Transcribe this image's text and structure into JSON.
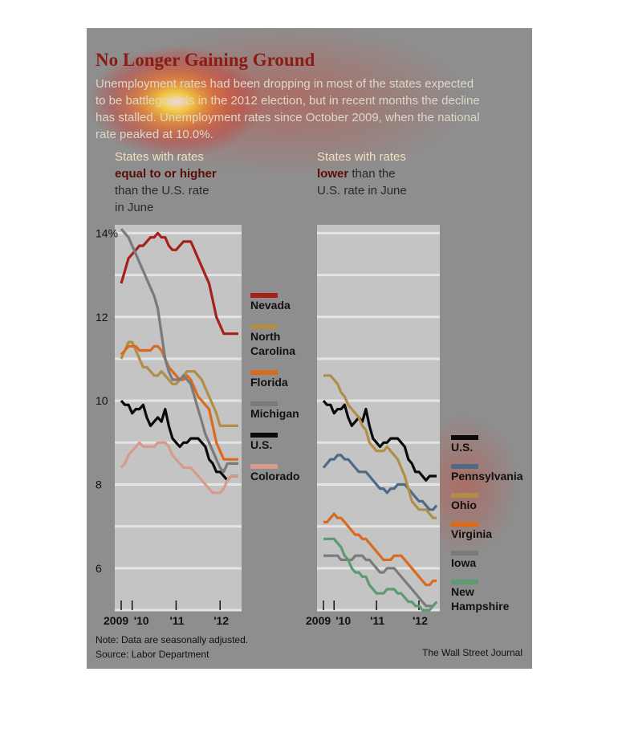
{
  "title": "No Longer Gaining Ground",
  "subtitle": "Unemployment rates had been dropping in most of the states expected to be battlegounds in the 2012 election, but in recent months the decline has stalled. Unemployment rates since October 2009, when the national rate peaked at 10.0%.",
  "left_panel": {
    "heading_line1": "States with rates",
    "heading_bold": "equal to or higher",
    "heading_line3": "than the U.S. rate",
    "heading_line4": "in June"
  },
  "right_panel": {
    "heading_line1": "States with rates",
    "heading_bold": "lower",
    "heading_rest": " than the",
    "heading_line3": "U.S. rate in June"
  },
  "note": "Note: Data are seasonally adjusted.",
  "source": "Source: Labor Department",
  "credit": "The Wall Street Journal",
  "chart_data": [
    {
      "type": "line",
      "ylim": [
        5,
        14.2
      ],
      "y_ticks": [
        6,
        8,
        10,
        12,
        14
      ],
      "y_tick_labels": [
        "6",
        "8",
        "10",
        "12",
        "14%"
      ],
      "x_tick_labels": [
        "2009",
        "'10",
        "'11",
        "'12"
      ],
      "grid": true,
      "x": [
        0,
        1,
        2,
        3,
        4,
        5,
        6,
        7,
        8,
        9,
        10,
        11,
        12,
        13,
        14,
        15,
        16,
        17,
        18,
        19,
        20,
        21,
        22,
        23,
        24,
        25,
        26,
        27,
        28,
        29,
        30,
        31,
        32
      ],
      "series": [
        {
          "name": "Nevada",
          "color": "#a8201a",
          "values": [
            12.8,
            13.1,
            13.4,
            13.5,
            13.6,
            13.7,
            13.7,
            13.8,
            13.9,
            13.9,
            14.0,
            13.9,
            13.9,
            13.7,
            13.6,
            13.6,
            13.7,
            13.8,
            13.8,
            13.8,
            13.6,
            13.4,
            13.2,
            13.0,
            12.8,
            12.4,
            12.0,
            11.8,
            11.6,
            11.6,
            11.6,
            11.6,
            11.6
          ]
        },
        {
          "name": "North Carolina",
          "color": "#b08e48",
          "values": [
            11.0,
            11.2,
            11.4,
            11.4,
            11.2,
            11.0,
            10.8,
            10.8,
            10.7,
            10.6,
            10.6,
            10.7,
            10.6,
            10.5,
            10.4,
            10.4,
            10.5,
            10.6,
            10.7,
            10.7,
            10.7,
            10.6,
            10.5,
            10.3,
            10.1,
            9.9,
            9.7,
            9.4,
            9.4,
            9.4,
            9.4,
            9.4,
            9.4
          ]
        },
        {
          "name": "Florida",
          "color": "#d96a1e",
          "values": [
            11.1,
            11.2,
            11.3,
            11.3,
            11.3,
            11.2,
            11.2,
            11.2,
            11.2,
            11.3,
            11.3,
            11.2,
            11.0,
            10.8,
            10.7,
            10.6,
            10.5,
            10.5,
            10.6,
            10.5,
            10.3,
            10.1,
            10.0,
            9.9,
            9.8,
            9.4,
            9.0,
            8.8,
            8.6,
            8.6,
            8.6,
            8.6,
            8.6
          ]
        },
        {
          "name": "Michigan",
          "color": "#7a7a7a",
          "values": [
            14.1,
            14.0,
            13.9,
            13.7,
            13.5,
            13.3,
            13.1,
            12.9,
            12.7,
            12.5,
            12.2,
            11.6,
            11.0,
            10.7,
            10.5,
            10.5,
            10.5,
            10.6,
            10.5,
            10.4,
            10.1,
            9.8,
            9.5,
            9.2,
            9.0,
            8.8,
            8.6,
            8.4,
            8.3,
            8.5,
            8.5,
            8.5,
            8.5
          ]
        },
        {
          "name": "U.S.",
          "color": "#0a0a0a",
          "values": [
            10.0,
            9.9,
            9.9,
            9.7,
            9.8,
            9.8,
            9.9,
            9.6,
            9.4,
            9.5,
            9.6,
            9.5,
            9.8,
            9.4,
            9.1,
            9.0,
            8.9,
            9.0,
            9.0,
            9.1,
            9.1,
            9.1,
            9.0,
            8.9,
            8.6,
            8.5,
            8.3,
            8.3,
            8.2,
            8.1,
            8.2,
            8.2,
            8.2
          ]
        },
        {
          "name": "Colorado",
          "color": "#d79a8e",
          "values": [
            8.4,
            8.5,
            8.7,
            8.8,
            8.9,
            9.0,
            8.9,
            8.9,
            8.9,
            8.9,
            9.0,
            9.0,
            9.0,
            8.9,
            8.7,
            8.6,
            8.5,
            8.4,
            8.4,
            8.4,
            8.3,
            8.2,
            8.1,
            8.0,
            7.9,
            7.8,
            7.8,
            7.8,
            7.9,
            8.1,
            8.2,
            8.2,
            8.2
          ]
        }
      ]
    },
    {
      "type": "line",
      "ylim": [
        5,
        14.2
      ],
      "y_ticks": [
        6,
        8,
        10,
        12,
        14
      ],
      "x_tick_labels": [
        "2009",
        "'10",
        "'11",
        "'12"
      ],
      "grid": true,
      "x": [
        0,
        1,
        2,
        3,
        4,
        5,
        6,
        7,
        8,
        9,
        10,
        11,
        12,
        13,
        14,
        15,
        16,
        17,
        18,
        19,
        20,
        21,
        22,
        23,
        24,
        25,
        26,
        27,
        28,
        29,
        30,
        31,
        32
      ],
      "series": [
        {
          "name": "U.S.",
          "color": "#0a0a0a",
          "values": [
            10.0,
            9.9,
            9.9,
            9.7,
            9.8,
            9.8,
            9.9,
            9.6,
            9.4,
            9.5,
            9.6,
            9.5,
            9.8,
            9.4,
            9.1,
            9.0,
            8.9,
            9.0,
            9.0,
            9.1,
            9.1,
            9.1,
            9.0,
            8.9,
            8.6,
            8.5,
            8.3,
            8.3,
            8.2,
            8.1,
            8.2,
            8.2,
            8.2
          ]
        },
        {
          "name": "Pennsylvania",
          "color": "#4e6a86",
          "values": [
            8.4,
            8.5,
            8.6,
            8.6,
            8.7,
            8.7,
            8.6,
            8.6,
            8.5,
            8.4,
            8.3,
            8.3,
            8.3,
            8.2,
            8.1,
            8.0,
            7.9,
            7.9,
            7.8,
            7.9,
            7.9,
            8.0,
            8.0,
            8.0,
            7.9,
            7.8,
            7.7,
            7.6,
            7.6,
            7.5,
            7.4,
            7.4,
            7.5
          ]
        },
        {
          "name": "Ohio",
          "color": "#b08e48",
          "values": [
            10.6,
            10.6,
            10.6,
            10.5,
            10.4,
            10.2,
            10.1,
            9.9,
            9.8,
            9.7,
            9.6,
            9.4,
            9.3,
            9.0,
            8.9,
            8.8,
            8.8,
            8.8,
            8.9,
            8.8,
            8.7,
            8.6,
            8.4,
            8.2,
            7.9,
            7.6,
            7.5,
            7.4,
            7.4,
            7.4,
            7.3,
            7.2,
            7.2
          ]
        },
        {
          "name": "Virginia",
          "color": "#d96a1e",
          "values": [
            7.1,
            7.1,
            7.2,
            7.3,
            7.2,
            7.2,
            7.1,
            7.0,
            6.9,
            6.8,
            6.8,
            6.7,
            6.7,
            6.6,
            6.5,
            6.4,
            6.3,
            6.2,
            6.2,
            6.2,
            6.3,
            6.3,
            6.3,
            6.2,
            6.1,
            6.0,
            5.9,
            5.8,
            5.7,
            5.6,
            5.6,
            5.7,
            5.7
          ]
        },
        {
          "name": "Iowa",
          "color": "#7a7a7a",
          "values": [
            6.3,
            6.3,
            6.3,
            6.3,
            6.3,
            6.2,
            6.2,
            6.2,
            6.2,
            6.3,
            6.3,
            6.3,
            6.2,
            6.2,
            6.1,
            6.0,
            5.9,
            5.9,
            6.0,
            6.0,
            6.0,
            5.9,
            5.8,
            5.7,
            5.6,
            5.5,
            5.4,
            5.3,
            5.2,
            5.1,
            5.1,
            5.1,
            5.2
          ]
        },
        {
          "name": "New Hampshire",
          "color": "#5d9a72",
          "values": [
            6.7,
            6.7,
            6.7,
            6.7,
            6.6,
            6.5,
            6.3,
            6.2,
            6.0,
            5.9,
            5.9,
            5.8,
            5.8,
            5.6,
            5.5,
            5.4,
            5.4,
            5.4,
            5.5,
            5.5,
            5.5,
            5.4,
            5.4,
            5.3,
            5.2,
            5.2,
            5.1,
            5.1,
            5.0,
            5.0,
            5.0,
            5.1,
            5.2
          ]
        }
      ]
    }
  ]
}
